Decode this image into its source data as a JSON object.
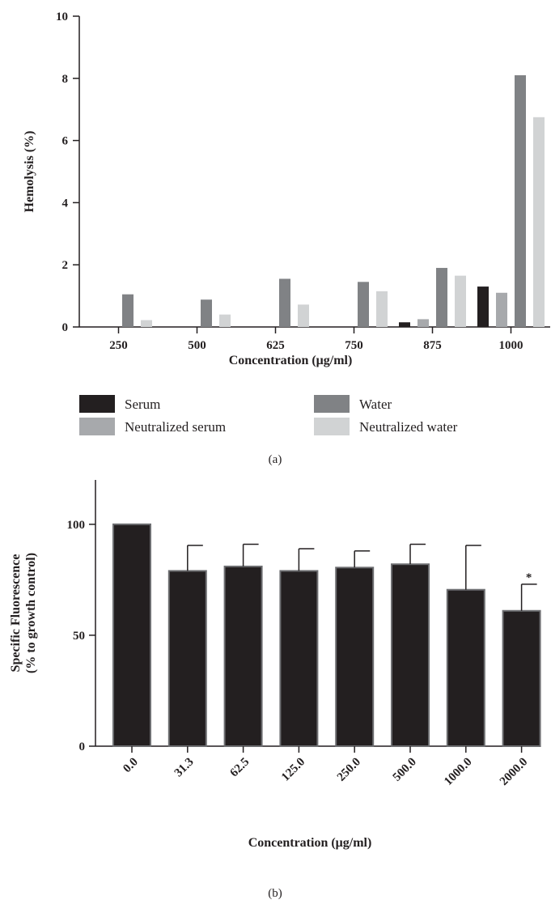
{
  "chart_data": [
    {
      "type": "bar",
      "panel_label": "(a)",
      "xlabel": "Concentration (μg/ml)",
      "ylabel": "Hemolysis (%)",
      "ylim": [
        0,
        10
      ],
      "yticks": [
        0,
        2,
        4,
        6,
        8,
        10
      ],
      "categories": [
        "250",
        "500",
        "625",
        "750",
        "875",
        "1000"
      ],
      "series": [
        {
          "name": "Serum",
          "color": "#231f20",
          "values": [
            0,
            0,
            0,
            0,
            0.15,
            1.3
          ]
        },
        {
          "name": "Neutralized serum",
          "color": "#a7a9ac",
          "values": [
            0,
            0,
            0,
            0,
            0.25,
            1.1
          ]
        },
        {
          "name": "Water",
          "color": "#808285",
          "values": [
            1.05,
            0.88,
            1.55,
            1.45,
            1.9,
            8.1
          ]
        },
        {
          "name": "Neutralized water",
          "color": "#d1d3d4",
          "values": [
            0.22,
            0.4,
            0.72,
            1.15,
            1.65,
            6.75
          ]
        }
      ],
      "legend_placement": "bottom",
      "grid": false
    },
    {
      "type": "bar",
      "panel_label": "(b)",
      "xlabel": "Concentration (μg/ml)",
      "ylabel_line1": "Specific Fluorescence",
      "ylabel_line2": "(% to growth control)",
      "ylim": [
        0,
        120
      ],
      "yticks": [
        0,
        50,
        100
      ],
      "categories": [
        "0.0",
        "31.3",
        "62.5",
        "125.0",
        "250.0",
        "500.0",
        "1000.0",
        "2000.0"
      ],
      "values": [
        100,
        79,
        81,
        79,
        80.5,
        82,
        70.5,
        61
      ],
      "errors": [
        0,
        11.5,
        10,
        10,
        7.5,
        9,
        20,
        12
      ],
      "annotations": [
        {
          "category": "2000.0",
          "text": "*"
        }
      ],
      "bar_color": "#231f20",
      "grid": false
    }
  ]
}
